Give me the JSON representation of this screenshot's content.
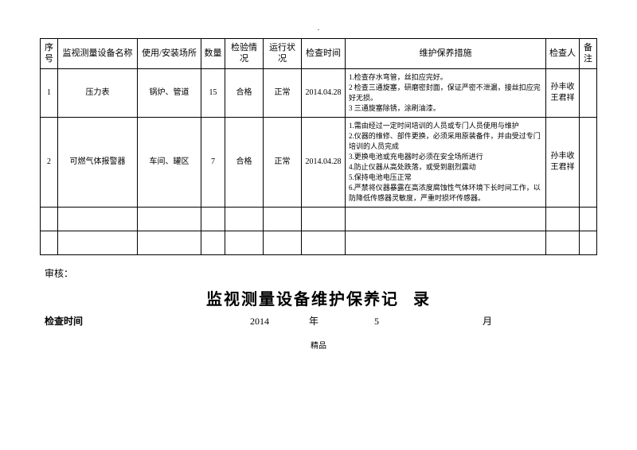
{
  "headers": {
    "seq": "序号",
    "name": "监视测量设备名称",
    "loc": "使用/安装场所",
    "qty": "数量",
    "insp": "检验情况",
    "run": "运行状况",
    "time": "检查时间",
    "meas": "维护保养措施",
    "chk": "检查人",
    "note": "备注"
  },
  "rows": [
    {
      "seq": "1",
      "name": "压力表",
      "loc": "锅炉、管道",
      "qty": "15",
      "insp": "合格",
      "run": "正常",
      "time": "2014.04.28",
      "meas": "1.检查存水弯管，丝扣应完好。\n2 检查三通旋塞，研磨密封面，保证严密不泄漏，接丝扣应完好无损。\n3 三通旋塞除锈，涂刷油漆。",
      "chk": "孙丰收\n王君祥",
      "note": ""
    },
    {
      "seq": "2",
      "name": "可燃气体报警器",
      "loc": "车间、罐区",
      "qty": "7",
      "insp": "合格",
      "run": "正常",
      "time": "2014.04.28",
      "meas": "1.需由经过一定时间培训的人员或专门人员使用与维护\n2.仪器的维修、部件更换，必须采用原装备件，并由受过专门培训的人员完成\n3.更换电池或充电器时必须在安全场所进行\n4.防止仪器从高处跌落，或受到剧烈震动\n5.保持电池电压正常\n6.严禁将仪器暴露在高浓度腐蚀性气体环境下长时间工作，以防降低传感器灵敏度，严重时损坏传感器。",
      "chk": "孙丰收\n王君祥",
      "note": ""
    }
  ],
  "footer": {
    "reviewer": "审核：",
    "title2_a": "监视测量设备维护保养记",
    "title2_b": "录",
    "checkLabel": "检查时间",
    "year": "2014",
    "ychar": "年",
    "month": "5",
    "mchar": "月",
    "fine": "精品"
  }
}
